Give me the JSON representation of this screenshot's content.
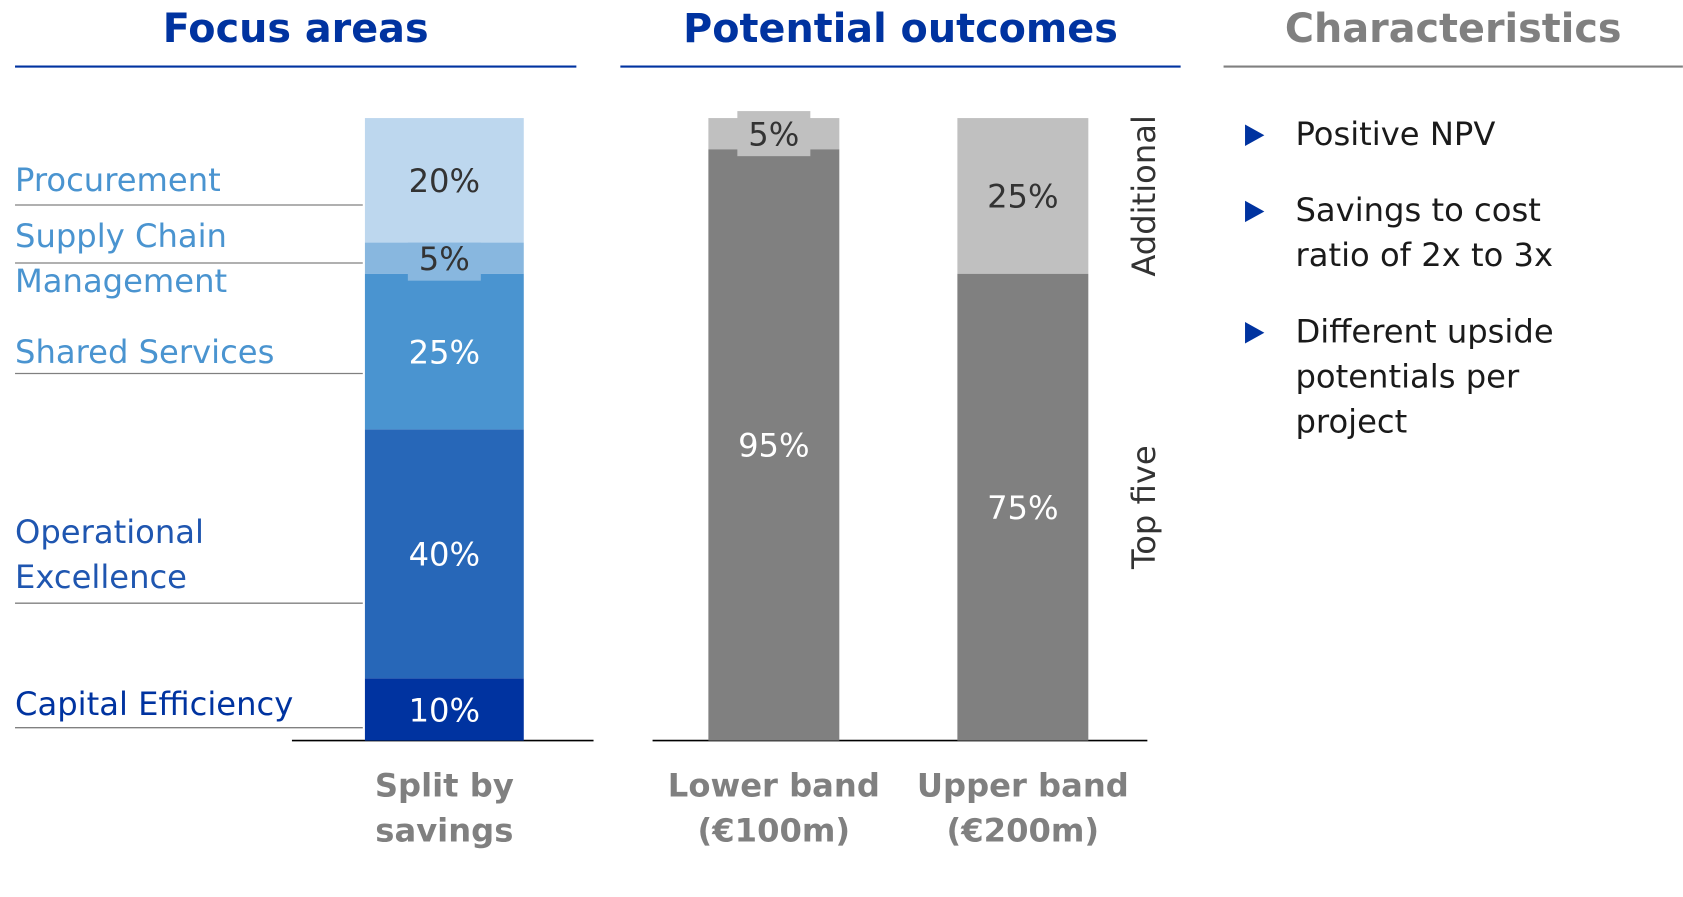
{
  "headers": [
    "Focus areas",
    "Potential outcomes",
    "Characteristics"
  ],
  "characteristics": [
    "Positive NPV",
    "Savings to cost ratio of 2x to 3x",
    "Different upside potentials per project"
  ],
  "chart_data": [
    {
      "type": "stacked_bar",
      "categories": [
        "Split by savings"
      ],
      "series": [
        {
          "name": "Capital Efficiency",
          "color": "#0033a0",
          "values": [
            10
          ],
          "value_labels": [
            "10%"
          ]
        },
        {
          "name": "Operational Excellence",
          "color": "#2767b8",
          "values": [
            40
          ],
          "value_labels": [
            "40%"
          ]
        },
        {
          "name": "Shared Services",
          "color": "#4a94d0",
          "values": [
            25
          ],
          "value_labels": [
            "25%"
          ]
        },
        {
          "name": "Supply Chain Management",
          "color": "#88b7df",
          "values": [
            5
          ],
          "value_labels": [
            "5%"
          ]
        },
        {
          "name": "Procurement",
          "color": "#bdd7ee",
          "values": [
            20
          ],
          "value_labels": [
            "20%"
          ]
        }
      ]
    },
    {
      "type": "stacked_bar",
      "categories": [
        "Lower band (€100m)",
        "Upper band (€200m)"
      ],
      "series": [
        {
          "name": "Top five",
          "color": "#808080",
          "values": [
            95,
            75
          ],
          "value_labels": [
            "95%",
            "75%"
          ]
        },
        {
          "name": "Additional",
          "color": "#c0c0c0",
          "values": [
            5,
            25
          ],
          "value_labels": [
            "5%",
            "25%"
          ]
        }
      ]
    }
  ]
}
